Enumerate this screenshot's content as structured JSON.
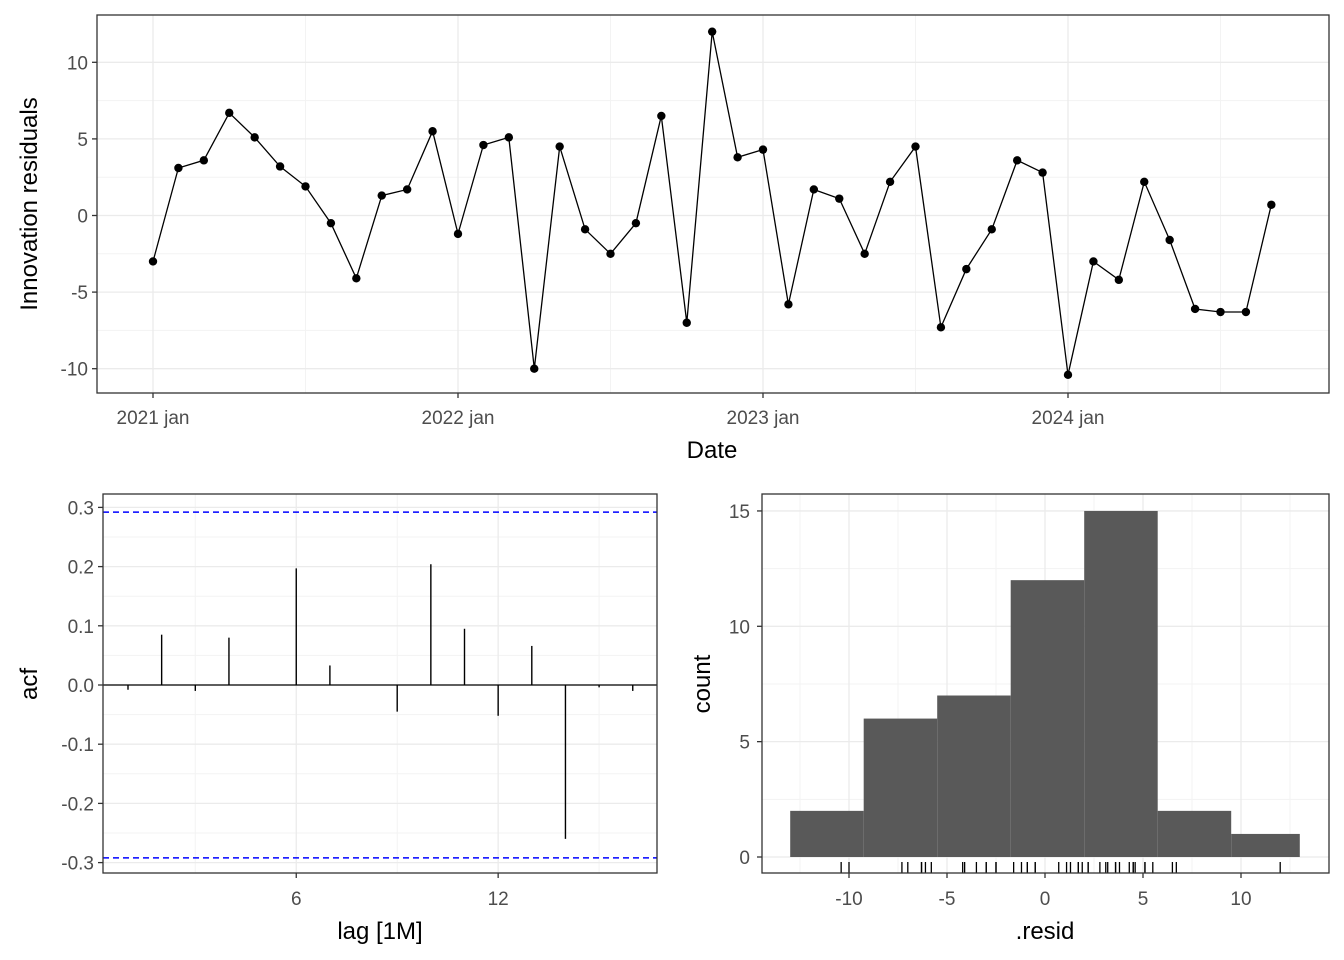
{
  "chart_data": [
    {
      "type": "line",
      "xlabel": "Date",
      "ylabel": "Innovation residuals",
      "x_ticks": [
        "2021 jan",
        "2022 jan",
        "2023 jan",
        "2024 jan"
      ],
      "y_ticks": [
        -10,
        -5,
        0,
        5,
        10
      ],
      "ylim": [
        -11.6,
        12.3
      ],
      "grid": true,
      "x": [
        "2021-01",
        "2021-02",
        "2021-03",
        "2021-04",
        "2021-05",
        "2021-06",
        "2021-07",
        "2021-08",
        "2021-09",
        "2021-10",
        "2021-11",
        "2021-12",
        "2022-01",
        "2022-02",
        "2022-03",
        "2022-04",
        "2022-05",
        "2022-06",
        "2022-07",
        "2022-08",
        "2022-09",
        "2022-10",
        "2022-11",
        "2022-12",
        "2023-01",
        "2023-02",
        "2023-03",
        "2023-04",
        "2023-05",
        "2023-06",
        "2023-07",
        "2023-08",
        "2023-09",
        "2023-10",
        "2023-11",
        "2023-12",
        "2024-01",
        "2024-02",
        "2024-03",
        "2024-04",
        "2024-05",
        "2024-06",
        "2024-07",
        "2024-08",
        "2024-09"
      ],
      "values": [
        -3.0,
        3.1,
        3.6,
        6.7,
        5.1,
        3.2,
        1.9,
        -0.5,
        -4.1,
        1.3,
        1.7,
        5.5,
        -1.2,
        4.6,
        5.1,
        -10.0,
        4.5,
        -0.9,
        -2.5,
        -0.5,
        6.5,
        -7.0,
        12.0,
        3.8,
        4.3,
        -5.8,
        1.7,
        1.1,
        -2.5,
        2.2,
        4.5,
        -7.3,
        -3.5,
        -0.9,
        3.6,
        2.8,
        -10.4,
        -3.0,
        -4.2,
        2.2,
        -1.6,
        -6.1,
        -6.3,
        -6.3,
        0.7
      ]
    },
    {
      "type": "bar",
      "xlabel": "lag [1M]",
      "ylabel": "acf",
      "x_ticks": [
        6,
        12
      ],
      "y_ticks": [
        "-0.3",
        "-0.2",
        "-0.1",
        "0.0",
        "0.1",
        "0.2",
        "0.3"
      ],
      "ylim": [
        -0.32,
        0.31
      ],
      "xlim": [
        0.5,
        17.0
      ],
      "confidence_bounds": [
        -0.292,
        0.292
      ],
      "bound_color": "#0000ff",
      "lags": [
        1,
        2,
        3,
        4,
        5,
        6,
        7,
        8,
        9,
        10,
        11,
        12,
        13,
        14,
        15,
        16
      ],
      "values": [
        -0.008,
        0.085,
        -0.01,
        0.08,
        0.0,
        0.197,
        0.033,
        0.0,
        -0.045,
        0.204,
        0.095,
        -0.052,
        0.066,
        -0.26,
        -0.004,
        -0.01
      ]
    },
    {
      "type": "bar",
      "xlabel": ".resid",
      "ylabel": "count",
      "x_ticks": [
        -10,
        -5,
        0,
        5,
        10
      ],
      "y_ticks": [
        0,
        5,
        10,
        15
      ],
      "xlim": [
        -14.3,
        14.4
      ],
      "ylim": [
        -0.5,
        15.7
      ],
      "bar_color": "#595959",
      "bins": [
        {
          "from": -13.0,
          "to": -9.25,
          "count": 2
        },
        {
          "from": -9.25,
          "to": -5.5,
          "count": 6
        },
        {
          "from": -5.5,
          "to": -1.75,
          "count": 7
        },
        {
          "from": -1.75,
          "to": 2.0,
          "count": 12
        },
        {
          "from": 2.0,
          "to": 5.75,
          "count": 15
        },
        {
          "from": 5.75,
          "to": 9.5,
          "count": 2
        },
        {
          "from": 9.5,
          "to": 13.0,
          "count": 1
        }
      ],
      "rug": [
        -10.4,
        -10.0,
        -7.3,
        -7.0,
        -6.3,
        -6.3,
        -6.1,
        -5.8,
        -4.2,
        -4.1,
        -3.5,
        -3.0,
        -3.0,
        -2.5,
        -2.5,
        -1.6,
        -1.2,
        -0.9,
        -0.9,
        -0.5,
        -0.5,
        0.7,
        1.1,
        1.3,
        1.7,
        1.7,
        1.9,
        2.2,
        2.2,
        2.8,
        3.1,
        3.2,
        3.6,
        3.6,
        3.8,
        4.3,
        4.5,
        4.5,
        4.6,
        5.1,
        5.1,
        5.5,
        6.5,
        6.7,
        12.0
      ]
    }
  ]
}
